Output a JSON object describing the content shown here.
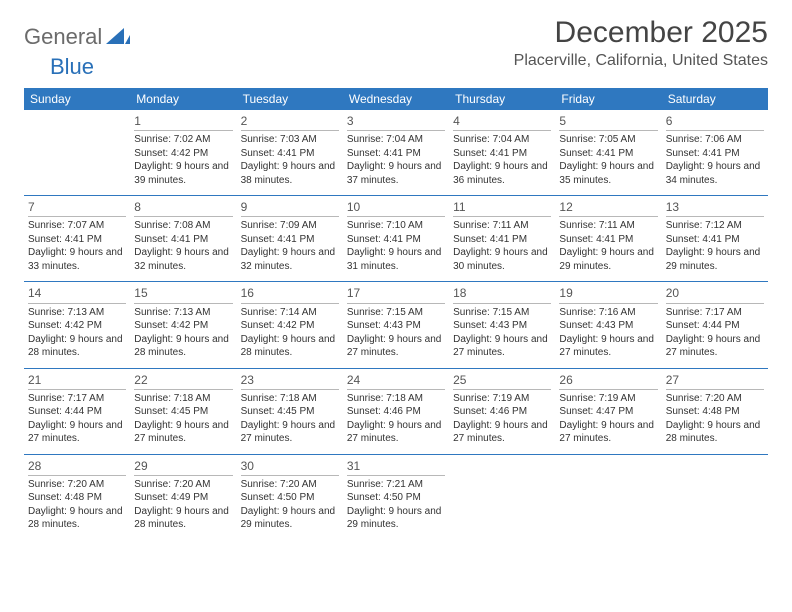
{
  "brand": {
    "part1": "General",
    "part2": "Blue",
    "color_general": "#6b6b6b",
    "color_blue": "#2970b8"
  },
  "title": "December 2025",
  "location": "Placerville, California, United States",
  "colors": {
    "header_bg": "#2f78c0",
    "header_fg": "#ffffff",
    "rule": "#2f78c0",
    "daynum_rule": "#b8b8b8",
    "text": "#333333",
    "bg": "#ffffff"
  },
  "fonts": {
    "title_pt": 30,
    "location_pt": 16,
    "dayhead_pt": 12,
    "daynum_pt": 12,
    "body_pt": 10
  },
  "layout": {
    "cols": 7,
    "rows": 5
  },
  "day_headers": [
    "Sunday",
    "Monday",
    "Tuesday",
    "Wednesday",
    "Thursday",
    "Friday",
    "Saturday"
  ],
  "weeks": [
    [
      {
        "day": "",
        "sunrise": "",
        "sunset": "",
        "daylight": ""
      },
      {
        "day": "1",
        "sunrise": "7:02 AM",
        "sunset": "4:42 PM",
        "daylight": "9 hours and 39 minutes."
      },
      {
        "day": "2",
        "sunrise": "7:03 AM",
        "sunset": "4:41 PM",
        "daylight": "9 hours and 38 minutes."
      },
      {
        "day": "3",
        "sunrise": "7:04 AM",
        "sunset": "4:41 PM",
        "daylight": "9 hours and 37 minutes."
      },
      {
        "day": "4",
        "sunrise": "7:04 AM",
        "sunset": "4:41 PM",
        "daylight": "9 hours and 36 minutes."
      },
      {
        "day": "5",
        "sunrise": "7:05 AM",
        "sunset": "4:41 PM",
        "daylight": "9 hours and 35 minutes."
      },
      {
        "day": "6",
        "sunrise": "7:06 AM",
        "sunset": "4:41 PM",
        "daylight": "9 hours and 34 minutes."
      }
    ],
    [
      {
        "day": "7",
        "sunrise": "7:07 AM",
        "sunset": "4:41 PM",
        "daylight": "9 hours and 33 minutes."
      },
      {
        "day": "8",
        "sunrise": "7:08 AM",
        "sunset": "4:41 PM",
        "daylight": "9 hours and 32 minutes."
      },
      {
        "day": "9",
        "sunrise": "7:09 AM",
        "sunset": "4:41 PM",
        "daylight": "9 hours and 32 minutes."
      },
      {
        "day": "10",
        "sunrise": "7:10 AM",
        "sunset": "4:41 PM",
        "daylight": "9 hours and 31 minutes."
      },
      {
        "day": "11",
        "sunrise": "7:11 AM",
        "sunset": "4:41 PM",
        "daylight": "9 hours and 30 minutes."
      },
      {
        "day": "12",
        "sunrise": "7:11 AM",
        "sunset": "4:41 PM",
        "daylight": "9 hours and 29 minutes."
      },
      {
        "day": "13",
        "sunrise": "7:12 AM",
        "sunset": "4:41 PM",
        "daylight": "9 hours and 29 minutes."
      }
    ],
    [
      {
        "day": "14",
        "sunrise": "7:13 AM",
        "sunset": "4:42 PM",
        "daylight": "9 hours and 28 minutes."
      },
      {
        "day": "15",
        "sunrise": "7:13 AM",
        "sunset": "4:42 PM",
        "daylight": "9 hours and 28 minutes."
      },
      {
        "day": "16",
        "sunrise": "7:14 AM",
        "sunset": "4:42 PM",
        "daylight": "9 hours and 28 minutes."
      },
      {
        "day": "17",
        "sunrise": "7:15 AM",
        "sunset": "4:43 PM",
        "daylight": "9 hours and 27 minutes."
      },
      {
        "day": "18",
        "sunrise": "7:15 AM",
        "sunset": "4:43 PM",
        "daylight": "9 hours and 27 minutes."
      },
      {
        "day": "19",
        "sunrise": "7:16 AM",
        "sunset": "4:43 PM",
        "daylight": "9 hours and 27 minutes."
      },
      {
        "day": "20",
        "sunrise": "7:17 AM",
        "sunset": "4:44 PM",
        "daylight": "9 hours and 27 minutes."
      }
    ],
    [
      {
        "day": "21",
        "sunrise": "7:17 AM",
        "sunset": "4:44 PM",
        "daylight": "9 hours and 27 minutes."
      },
      {
        "day": "22",
        "sunrise": "7:18 AM",
        "sunset": "4:45 PM",
        "daylight": "9 hours and 27 minutes."
      },
      {
        "day": "23",
        "sunrise": "7:18 AM",
        "sunset": "4:45 PM",
        "daylight": "9 hours and 27 minutes."
      },
      {
        "day": "24",
        "sunrise": "7:18 AM",
        "sunset": "4:46 PM",
        "daylight": "9 hours and 27 minutes."
      },
      {
        "day": "25",
        "sunrise": "7:19 AM",
        "sunset": "4:46 PM",
        "daylight": "9 hours and 27 minutes."
      },
      {
        "day": "26",
        "sunrise": "7:19 AM",
        "sunset": "4:47 PM",
        "daylight": "9 hours and 27 minutes."
      },
      {
        "day": "27",
        "sunrise": "7:20 AM",
        "sunset": "4:48 PM",
        "daylight": "9 hours and 28 minutes."
      }
    ],
    [
      {
        "day": "28",
        "sunrise": "7:20 AM",
        "sunset": "4:48 PM",
        "daylight": "9 hours and 28 minutes."
      },
      {
        "day": "29",
        "sunrise": "7:20 AM",
        "sunset": "4:49 PM",
        "daylight": "9 hours and 28 minutes."
      },
      {
        "day": "30",
        "sunrise": "7:20 AM",
        "sunset": "4:50 PM",
        "daylight": "9 hours and 29 minutes."
      },
      {
        "day": "31",
        "sunrise": "7:21 AM",
        "sunset": "4:50 PM",
        "daylight": "9 hours and 29 minutes."
      },
      {
        "day": "",
        "sunrise": "",
        "sunset": "",
        "daylight": ""
      },
      {
        "day": "",
        "sunrise": "",
        "sunset": "",
        "daylight": ""
      },
      {
        "day": "",
        "sunrise": "",
        "sunset": "",
        "daylight": ""
      }
    ]
  ],
  "labels": {
    "sunrise": "Sunrise:",
    "sunset": "Sunset:",
    "daylight": "Daylight:"
  }
}
